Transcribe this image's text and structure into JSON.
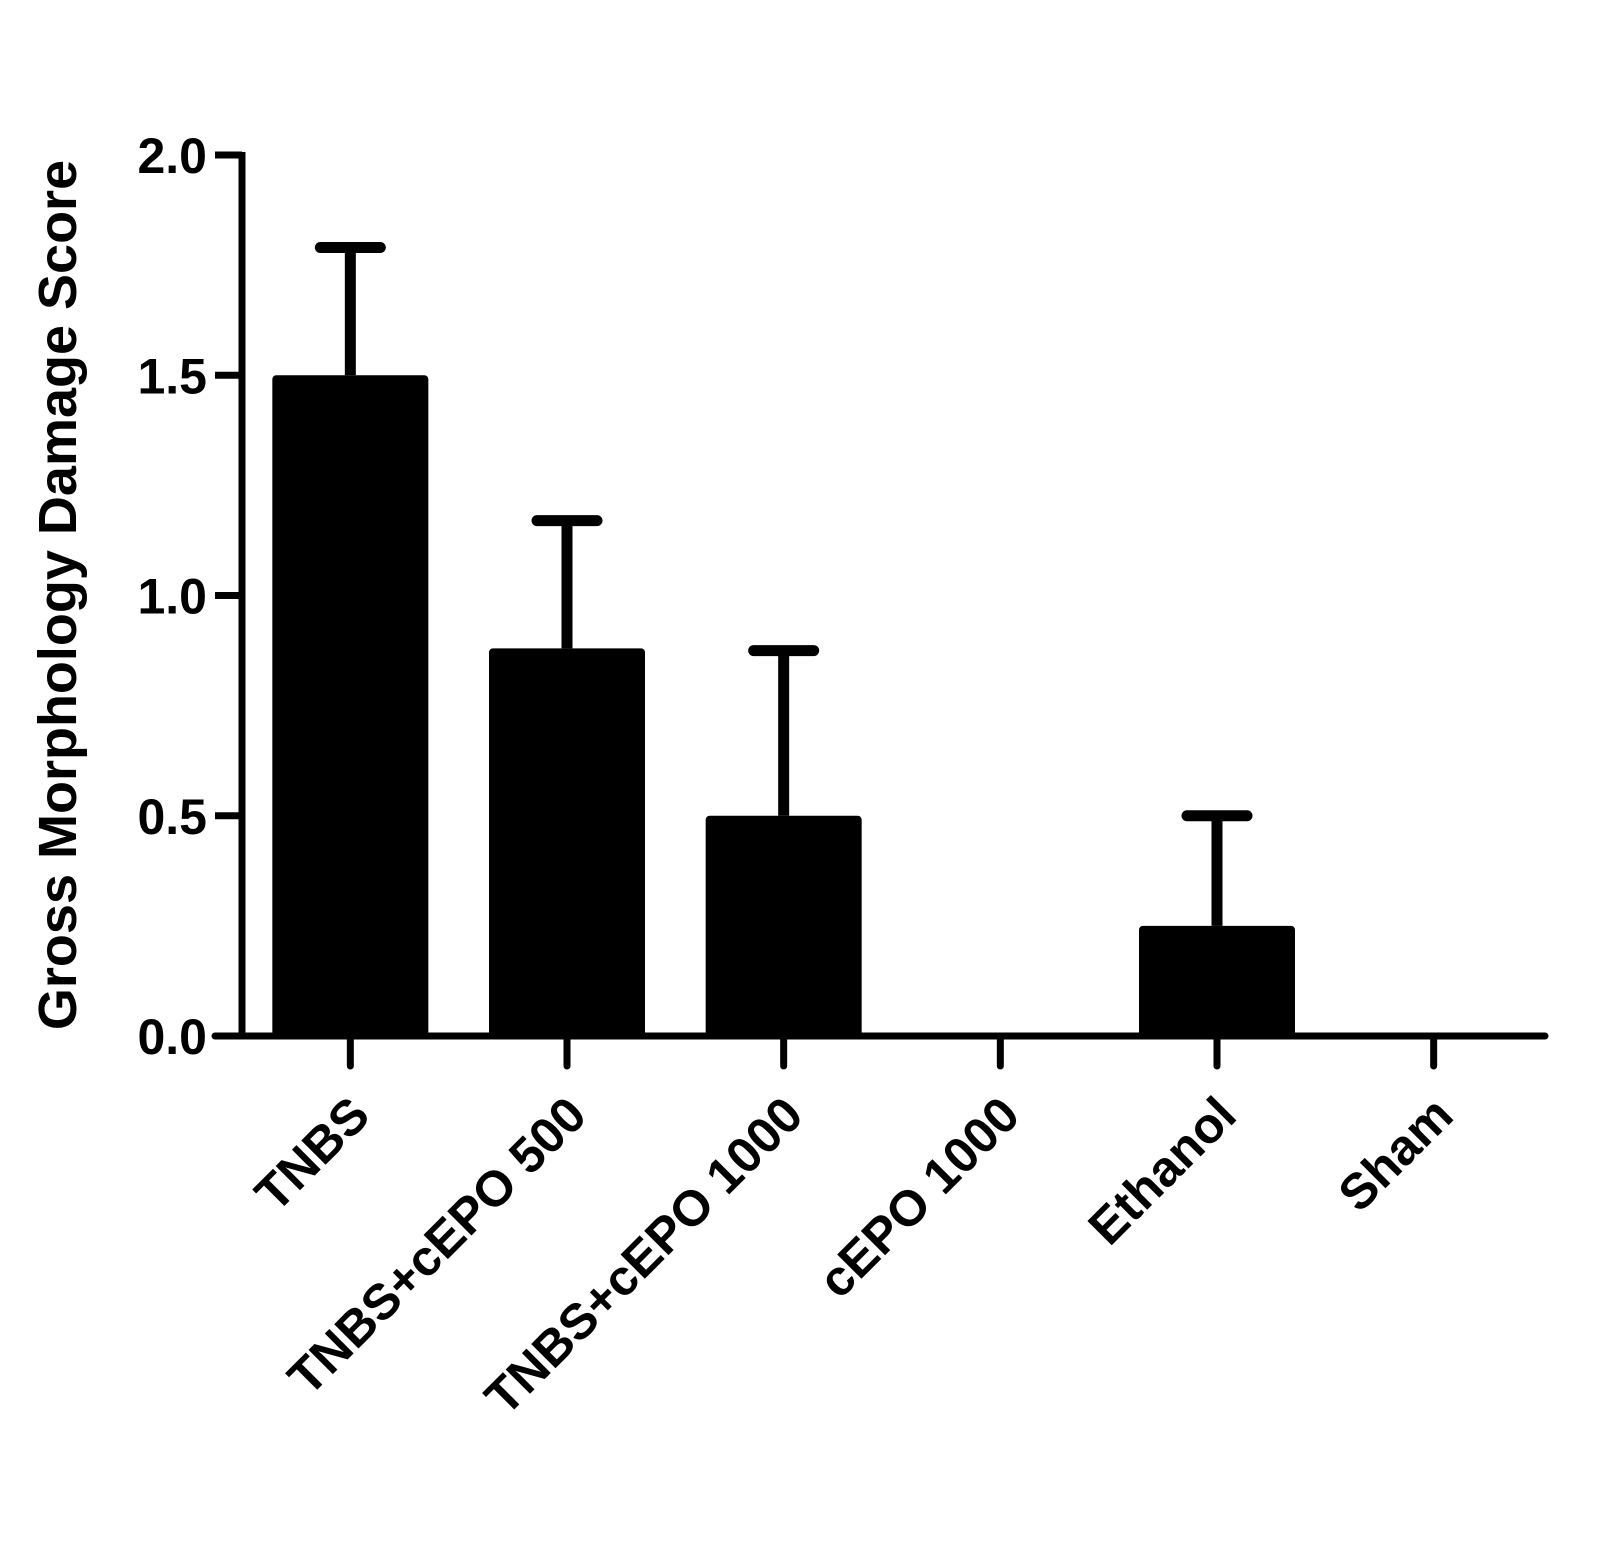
{
  "chart_data": {
    "type": "bar",
    "y_label": "Gross Morphology Damage Score",
    "categories": [
      "TNBS",
      "TNBS+cEPO 500",
      "TNBS+cEPO 1000",
      "cEPO 1000",
      "Ethanol",
      "Sham"
    ],
    "values": [
      1.5,
      0.88,
      0.5,
      0,
      0.25,
      0
    ],
    "errors": [
      0.29,
      0.29,
      0.375,
      0,
      0.25,
      0
    ],
    "color": "#000000",
    "ylim": [
      0,
      2.0
    ],
    "yticks": [
      {
        "value": 0,
        "label": "0.0"
      },
      {
        "value": 0.5,
        "label": "0.5"
      },
      {
        "value": 1.0,
        "label": "1.0"
      },
      {
        "value": 1.5,
        "label": "1.5"
      },
      {
        "value": 2.0,
        "label": "2.0"
      }
    ],
    "grid": false
  }
}
